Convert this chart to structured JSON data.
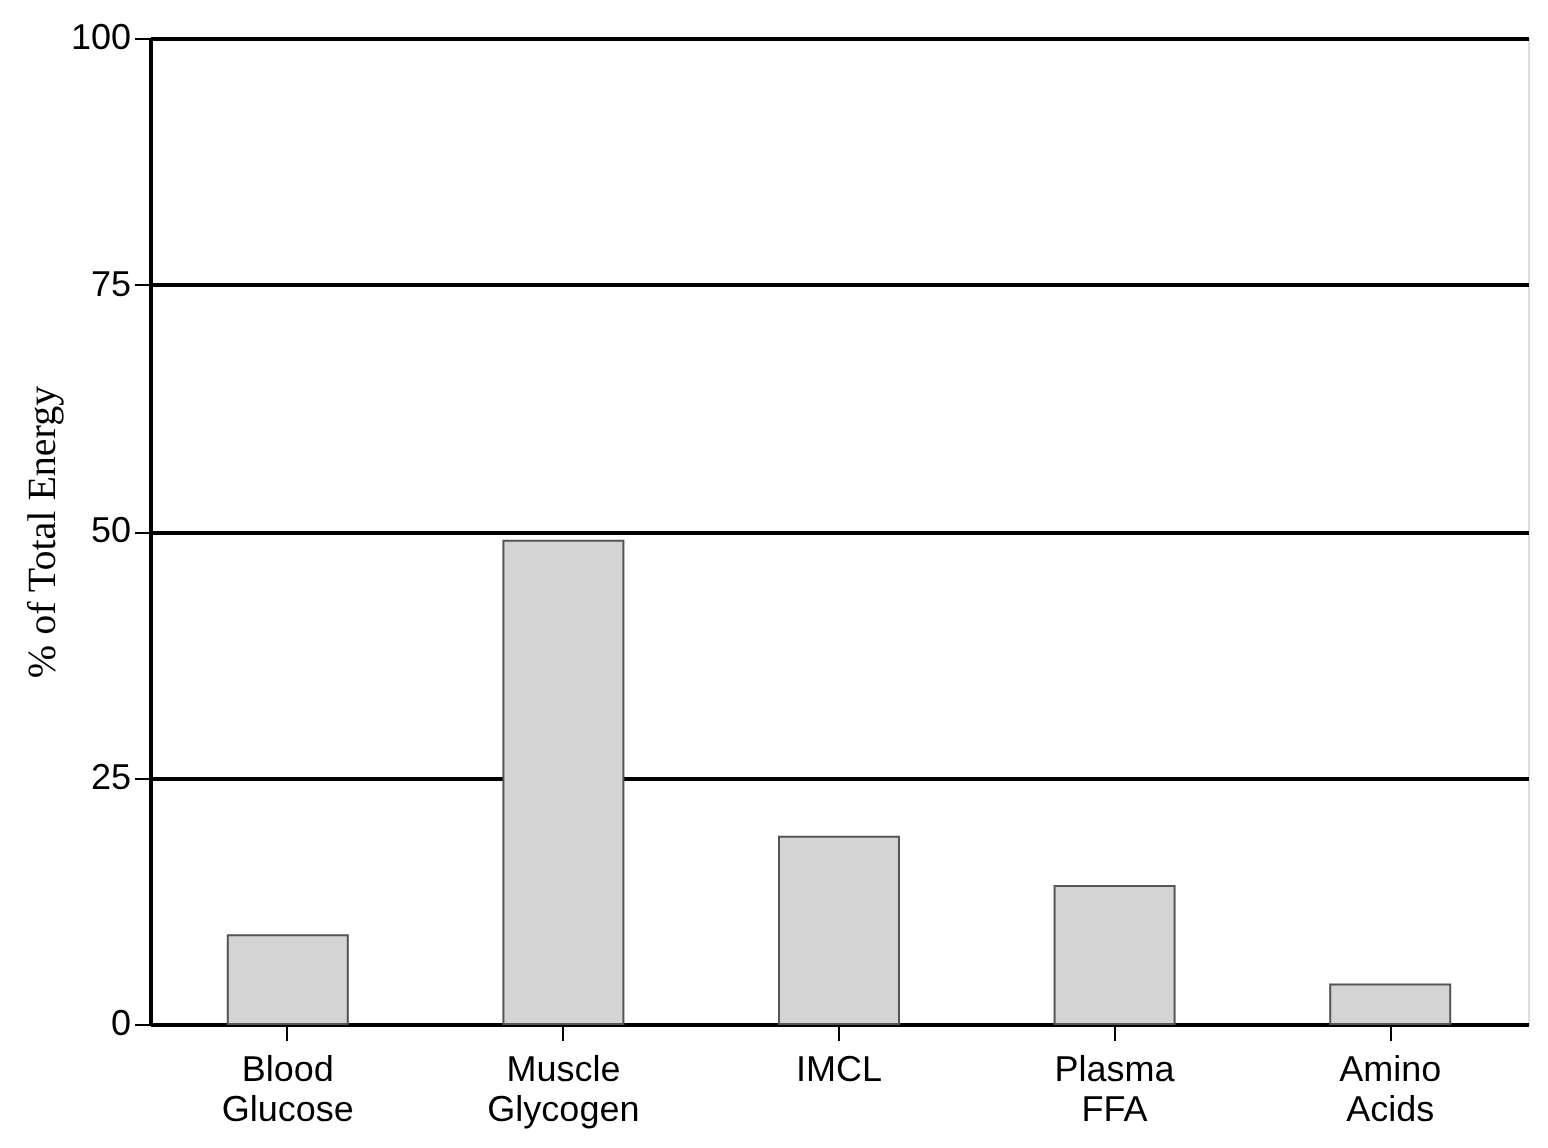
{
  "chart_data": {
    "type": "bar",
    "ylabel": "% of Total Energy",
    "categories": [
      "Blood Glucose",
      "Muscle Glycogen",
      "IMCL",
      "Plasma FFA",
      "Amino Acids"
    ],
    "values": [
      9,
      49,
      19,
      14,
      4
    ],
    "color": "#d4d4d4",
    "ylim": [
      0,
      100
    ],
    "yticks": [
      0,
      25,
      50,
      75,
      100
    ],
    "grid": "y"
  }
}
